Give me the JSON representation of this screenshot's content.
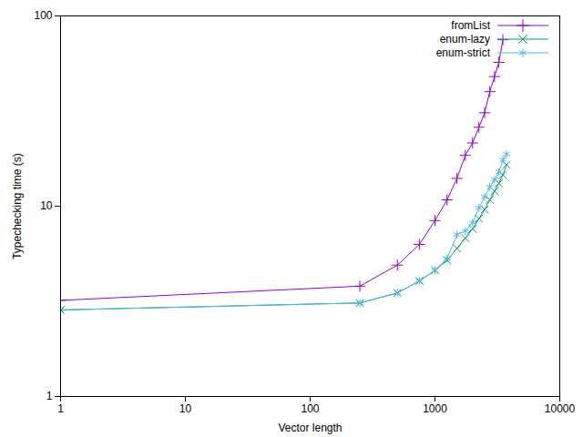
{
  "chart_data": {
    "type": "line",
    "x_label": "Vector length",
    "y_label": "Typechecking time (s)",
    "log": true,
    "grid": false,
    "legend": "top-right",
    "xlim": [
      1,
      10000
    ],
    "xticks": [
      1,
      10,
      100,
      1000,
      10000
    ],
    "ylim": [
      1,
      100
    ],
    "yticks": [
      1,
      10,
      100
    ],
    "x": [
      1,
      250,
      500,
      750,
      1000,
      1250,
      1500,
      1750,
      2000,
      2250,
      2500,
      2750,
      3000,
      3250,
      3500,
      3750
    ],
    "series": [
      {
        "name": "fromList",
        "color": "#9400d3",
        "marker": "plus",
        "values": [
          3.2,
          3.8,
          4.9,
          6.3,
          8.4,
          10.8,
          14,
          18.5,
          21.5,
          26,
          31,
          40,
          48,
          57,
          75,
          null
        ]
      },
      {
        "name": "enum-lazy",
        "color": "#009e73",
        "marker": "times",
        "values": [
          2.85,
          3.1,
          3.5,
          4.05,
          4.6,
          5.2,
          6.0,
          6.8,
          7.6,
          8.6,
          9.6,
          10.8,
          12,
          13.2,
          14.6,
          16.5
        ]
      },
      {
        "name": "enum-strict",
        "color": "#56b4e9",
        "marker": "asterisk",
        "values": [
          2.85,
          3.1,
          3.5,
          4.05,
          4.6,
          5.3,
          7.1,
          7.4,
          8.2,
          9.8,
          11.2,
          12.6,
          13.8,
          15.1,
          17.5,
          18.8
        ]
      }
    ]
  }
}
